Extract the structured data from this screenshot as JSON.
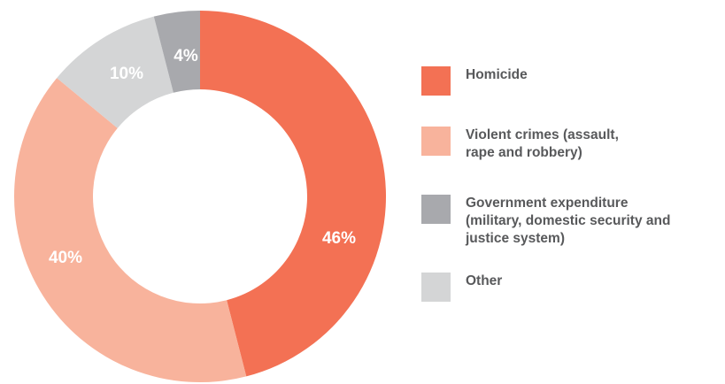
{
  "chart_data": {
    "type": "pie",
    "title": "",
    "labels": [
      "Homicide",
      "Violent crimes (assault,\nrape and robbery)",
      "Government expenditure\n(military, domestic security and\njustice system)",
      "Other"
    ],
    "values": [
      46,
      40,
      10,
      4
    ],
    "value_labels": [
      "46%",
      "40%",
      "10%",
      "4%"
    ],
    "colors": [
      "#f37154",
      "#f8b39c",
      "#a8a9ad",
      "#d4d5d6"
    ],
    "legend": [
      {
        "label": "Homicide",
        "color": "#f37154"
      },
      {
        "label": "Violent crimes (assault,\nrape and robbery)",
        "color": "#f8b39c"
      },
      {
        "label": "Government expenditure\n(military, domestic security and\njustice system)",
        "color": "#a8a9ad"
      },
      {
        "label": "Other",
        "color": "#d4d5d6"
      }
    ],
    "legend_position": "right",
    "donut": true
  }
}
